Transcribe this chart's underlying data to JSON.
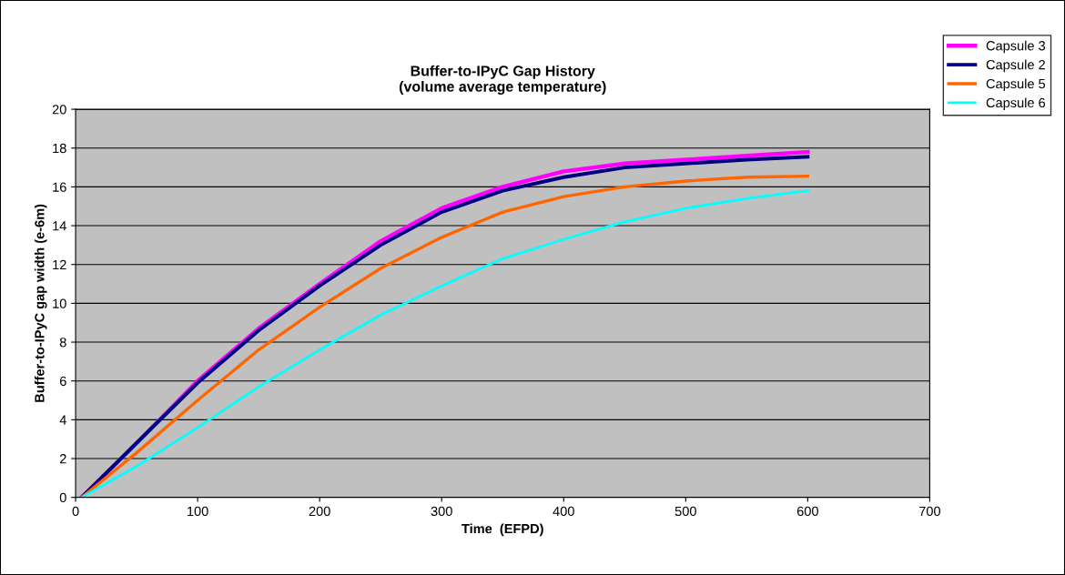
{
  "chart_data": {
    "type": "line",
    "title": "Buffer-to-IPyC Gap History\n(volume average temperature)",
    "xlabel": "Time  (EFPD)",
    "ylabel": "Buffer-to-IPyC gap width (e-6m)",
    "x": [
      5,
      50,
      100,
      150,
      200,
      250,
      300,
      350,
      400,
      450,
      500,
      550,
      600
    ],
    "series": [
      {
        "name": "Capsule 3",
        "color": "#ff00ff",
        "values": [
          0,
          2.8,
          6.0,
          8.7,
          11.0,
          13.2,
          14.9,
          16.0,
          16.8,
          17.2,
          17.4,
          17.6,
          17.8
        ]
      },
      {
        "name": "Capsule 2",
        "color": "#000080",
        "values": [
          0,
          2.8,
          5.9,
          8.6,
          10.9,
          13.0,
          14.7,
          15.8,
          16.5,
          17.0,
          17.2,
          17.4,
          17.55
        ]
      },
      {
        "name": "Capsule 5",
        "color": "#ff6600",
        "values": [
          0,
          2.3,
          5.0,
          7.6,
          9.8,
          11.8,
          13.4,
          14.7,
          15.5,
          16.0,
          16.3,
          16.5,
          16.55
        ]
      },
      {
        "name": "Capsule 6",
        "color": "#00ffff",
        "values": [
          0,
          1.6,
          3.6,
          5.7,
          7.6,
          9.4,
          10.9,
          12.3,
          13.3,
          14.2,
          14.9,
          15.4,
          15.8
        ]
      }
    ],
    "xlim": [
      0,
      700
    ],
    "xticks": [
      0,
      100,
      200,
      300,
      400,
      500,
      600,
      700
    ],
    "ylim": [
      0,
      20
    ],
    "yticks": [
      0,
      2,
      4,
      6,
      8,
      10,
      12,
      14,
      16,
      18,
      20
    ],
    "grid": "y",
    "legend": "top right",
    "marker": "none",
    "line_style": "solid"
  }
}
